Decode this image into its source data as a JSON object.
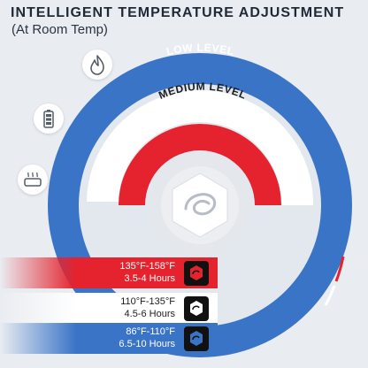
{
  "header": {
    "title": "INTELLIGENT TEMPERATURE ADJUSTMENT",
    "subtitle": "(At Room Temp)"
  },
  "levels": [
    {
      "label": "LOW LEVEL",
      "temp_range": "86°F-110°F",
      "duration": "6.5-10 Hours",
      "color": "#3a74c7"
    },
    {
      "label": "MEDIUM LEVEL",
      "temp_range": "110°F-135°F",
      "duration": "4.5-6 Hours",
      "color": "#ffffff"
    },
    {
      "label": "HIGH LEVEL",
      "temp_range": "135°F-158°F",
      "duration": "3.5-4 Hours",
      "color": "#e4232e"
    }
  ],
  "icons": {
    "side": [
      "flame-icon",
      "battery-icon",
      "heating-pad-icon"
    ],
    "center": "hexagon-logo-icon",
    "badges": [
      "red-logo-badge-icon",
      "white-logo-badge-icon",
      "blue-logo-badge-icon"
    ]
  }
}
